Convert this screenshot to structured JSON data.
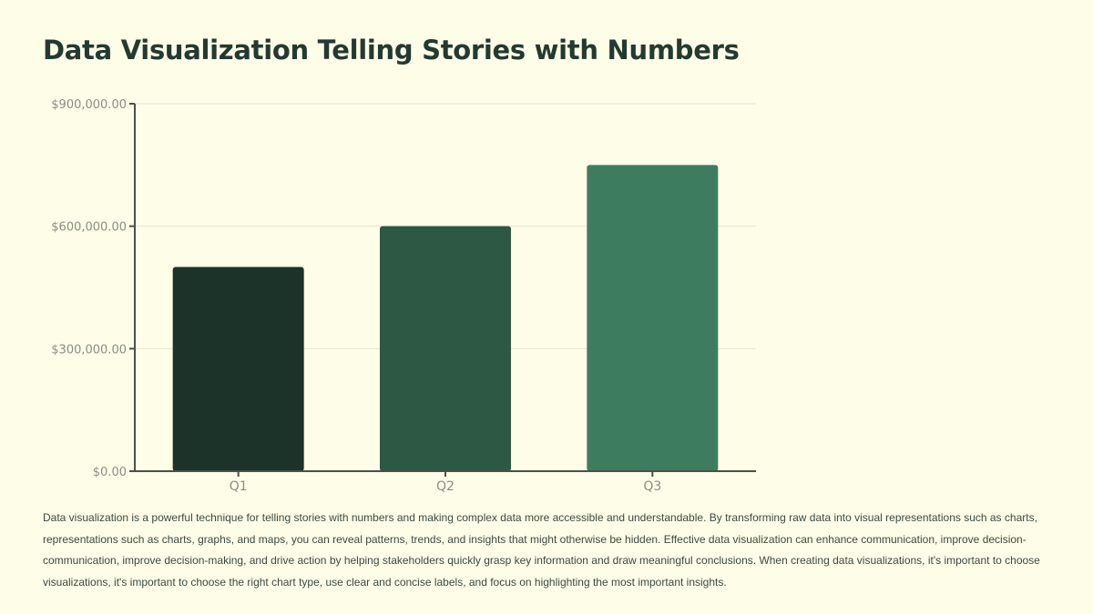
{
  "title": "Data Visualization Telling Stories with Numbers",
  "description": "Data visualization is a powerful technique for telling stories with numbers and making complex data more accessible and understandable. By transforming raw data into visual representations such as charts, representations such as charts, graphs, and maps, you can reveal patterns, trends, and insights that might otherwise be hidden. Effective data visualization can enhance communication, improve decision-communication, improve decision-making, and drive action by helping stakeholders quickly grasp key information and draw meaningful conclusions. When creating data visualizations, it's important to choose visualizations, it's important to choose the right chart type, use clear and concise labels, and focus on highlighting the most important insights.",
  "chart_data": {
    "type": "bar",
    "title": "",
    "xlabel": "",
    "ylabel": "",
    "categories": [
      "Q1",
      "Q2",
      "Q3"
    ],
    "values": [
      500000,
      600000,
      750000
    ],
    "colors": [
      "#1b3328",
      "#2d5844",
      "#3e7c60"
    ],
    "ylim": [
      0,
      900000
    ],
    "yticks": [
      0,
      300000,
      600000,
      900000
    ],
    "ytick_labels": [
      "$0.00",
      "$300,000.00",
      "$600,000.00",
      "$900,000.00"
    ],
    "grid": true,
    "legend": "none"
  }
}
